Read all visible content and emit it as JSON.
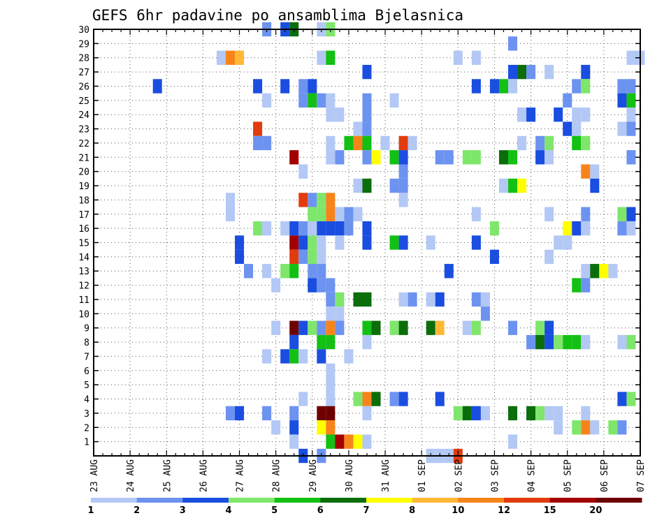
{
  "chart_data": {
    "type": "heatmap",
    "title": "GEFS 6hr padavine po ansamblima Bjelasnica",
    "xlabel": "",
    "ylabel": "",
    "x_tick_labels": [
      "23 AUG",
      "24 AUG",
      "25 AUG",
      "26 AUG",
      "27 AUG",
      "28 AUG",
      "29 AUG",
      "30 AUG",
      "31 AUG",
      "01 SEP",
      "02 SEP",
      "03 SEP",
      "04 SEP",
      "05 SEP",
      "06 SEP",
      "07 SEP"
    ],
    "y_tick_labels": [
      "1",
      "2",
      "3",
      "4",
      "5",
      "6",
      "7",
      "8",
      "9",
      "10",
      "11",
      "12",
      "13",
      "14",
      "15",
      "16",
      "17",
      "18",
      "19",
      "20",
      "21",
      "22",
      "23",
      "24",
      "25",
      "26",
      "27",
      "28",
      "29",
      "30"
    ],
    "x_range_steps": [
      0,
      60
    ],
    "steps_per_day": 4,
    "y_range_members": [
      0,
      30
    ],
    "legend_position": "bottom",
    "colorbar": {
      "labels": [
        "1",
        "2",
        "3",
        "4",
        "5",
        "6",
        "7",
        "8",
        "10",
        "12",
        "15",
        "20"
      ],
      "colors": [
        "#b3c8f5",
        "#6d93f0",
        "#1a4ee0",
        "#7fe66c",
        "#13c013",
        "#0b6e0b",
        "#ffff00",
        "#ffb836",
        "#f7841a",
        "#e23b0d",
        "#a20000",
        "#6e0000"
      ]
    },
    "cells": [
      [
        19,
        30,
        1
      ],
      [
        21,
        30,
        2
      ],
      [
        22,
        30,
        5
      ],
      [
        25,
        30,
        0
      ],
      [
        26,
        30,
        3
      ],
      [
        46,
        29,
        1
      ],
      [
        14,
        28,
        0
      ],
      [
        15,
        28,
        8
      ],
      [
        16,
        28,
        7
      ],
      [
        25,
        28,
        0
      ],
      [
        26,
        28,
        4
      ],
      [
        40,
        28,
        0
      ],
      [
        42,
        28,
        0
      ],
      [
        59,
        28,
        0
      ],
      [
        60,
        28,
        0
      ],
      [
        30,
        27,
        2
      ],
      [
        46,
        27,
        2
      ],
      [
        47,
        27,
        5
      ],
      [
        48,
        27,
        1
      ],
      [
        50,
        27,
        0
      ],
      [
        54,
        27,
        2
      ],
      [
        7,
        26,
        2
      ],
      [
        18,
        26,
        2
      ],
      [
        21,
        26,
        2
      ],
      [
        23,
        26,
        1
      ],
      [
        24,
        26,
        2
      ],
      [
        42,
        26,
        2
      ],
      [
        44,
        26,
        2
      ],
      [
        45,
        26,
        4
      ],
      [
        46,
        26,
        0
      ],
      [
        53,
        26,
        1
      ],
      [
        54,
        26,
        3
      ],
      [
        58,
        26,
        1
      ],
      [
        59,
        26,
        1
      ],
      [
        19,
        25,
        0
      ],
      [
        23,
        25,
        1
      ],
      [
        24,
        25,
        4
      ],
      [
        25,
        25,
        1
      ],
      [
        26,
        25,
        0
      ],
      [
        30,
        25,
        1
      ],
      [
        33,
        25,
        0
      ],
      [
        52,
        25,
        1
      ],
      [
        58,
        25,
        2
      ],
      [
        59,
        25,
        4
      ],
      [
        26,
        24,
        0
      ],
      [
        27,
        24,
        0
      ],
      [
        30,
        24,
        1
      ],
      [
        47,
        24,
        0
      ],
      [
        48,
        24,
        2
      ],
      [
        51,
        24,
        2
      ],
      [
        53,
        24,
        0
      ],
      [
        54,
        24,
        0
      ],
      [
        59,
        24,
        0
      ],
      [
        18,
        23,
        9
      ],
      [
        29,
        23,
        0
      ],
      [
        30,
        23,
        1
      ],
      [
        52,
        23,
        2
      ],
      [
        53,
        23,
        0
      ],
      [
        58,
        23,
        0
      ],
      [
        59,
        23,
        1
      ],
      [
        18,
        22,
        1
      ],
      [
        19,
        22,
        1
      ],
      [
        26,
        22,
        0
      ],
      [
        28,
        22,
        4
      ],
      [
        29,
        22,
        8
      ],
      [
        30,
        22,
        4
      ],
      [
        32,
        22,
        0
      ],
      [
        34,
        22,
        9
      ],
      [
        35,
        22,
        0
      ],
      [
        47,
        22,
        0
      ],
      [
        49,
        22,
        1
      ],
      [
        50,
        22,
        3
      ],
      [
        53,
        22,
        4
      ],
      [
        54,
        22,
        3
      ],
      [
        22,
        21,
        10
      ],
      [
        26,
        21,
        0
      ],
      [
        27,
        21,
        1
      ],
      [
        30,
        21,
        1
      ],
      [
        31,
        21,
        6
      ],
      [
        33,
        21,
        4
      ],
      [
        34,
        21,
        2
      ],
      [
        38,
        21,
        1
      ],
      [
        39,
        21,
        1
      ],
      [
        41,
        21,
        3
      ],
      [
        42,
        21,
        3
      ],
      [
        45,
        21,
        5
      ],
      [
        46,
        21,
        4
      ],
      [
        49,
        21,
        2
      ],
      [
        50,
        21,
        0
      ],
      [
        59,
        21,
        1
      ],
      [
        23,
        20,
        0
      ],
      [
        34,
        20,
        1
      ],
      [
        54,
        20,
        8
      ],
      [
        55,
        20,
        0
      ],
      [
        34,
        19,
        1
      ],
      [
        55,
        19,
        2
      ],
      [
        29,
        19,
        0
      ],
      [
        30,
        19,
        5
      ],
      [
        33,
        19,
        1
      ],
      [
        45,
        19,
        0
      ],
      [
        46,
        19,
        4
      ],
      [
        47,
        19,
        6
      ],
      [
        15,
        18,
        0
      ],
      [
        23,
        18,
        9
      ],
      [
        24,
        18,
        1
      ],
      [
        25,
        18,
        3
      ],
      [
        26,
        18,
        8
      ],
      [
        34,
        18,
        0
      ],
      [
        15,
        17,
        0
      ],
      [
        24,
        17,
        3
      ],
      [
        25,
        17,
        3
      ],
      [
        26,
        17,
        8
      ],
      [
        27,
        17,
        0
      ],
      [
        28,
        17,
        1
      ],
      [
        29,
        17,
        0
      ],
      [
        42,
        17,
        0
      ],
      [
        50,
        17,
        0
      ],
      [
        54,
        17,
        1
      ],
      [
        58,
        17,
        3
      ],
      [
        59,
        17,
        2
      ],
      [
        18,
        16,
        3
      ],
      [
        19,
        16,
        0
      ],
      [
        21,
        16,
        0
      ],
      [
        22,
        16,
        2
      ],
      [
        23,
        16,
        1
      ],
      [
        24,
        16,
        0
      ],
      [
        25,
        16,
        2
      ],
      [
        26,
        16,
        2
      ],
      [
        27,
        16,
        2
      ],
      [
        28,
        16,
        1
      ],
      [
        30,
        16,
        2
      ],
      [
        44,
        16,
        3
      ],
      [
        52,
        16,
        6
      ],
      [
        53,
        16,
        2
      ],
      [
        54,
        16,
        0
      ],
      [
        58,
        16,
        1
      ],
      [
        59,
        16,
        0
      ],
      [
        16,
        15,
        2
      ],
      [
        22,
        15,
        10
      ],
      [
        23,
        15,
        2
      ],
      [
        24,
        15,
        3
      ],
      [
        25,
        15,
        0
      ],
      [
        27,
        15,
        0
      ],
      [
        30,
        15,
        2
      ],
      [
        33,
        15,
        4
      ],
      [
        34,
        15,
        2
      ],
      [
        37,
        15,
        0
      ],
      [
        42,
        15,
        2
      ],
      [
        51,
        15,
        0
      ],
      [
        52,
        15,
        0
      ],
      [
        16,
        14,
        2
      ],
      [
        22,
        14,
        9
      ],
      [
        23,
        14,
        1
      ],
      [
        24,
        14,
        3
      ],
      [
        25,
        14,
        0
      ],
      [
        44,
        14,
        2
      ],
      [
        50,
        14,
        0
      ],
      [
        17,
        13,
        1
      ],
      [
        19,
        13,
        0
      ],
      [
        21,
        13,
        3
      ],
      [
        22,
        13,
        4
      ],
      [
        24,
        13,
        1
      ],
      [
        25,
        13,
        1
      ],
      [
        39,
        13,
        2
      ],
      [
        54,
        13,
        0
      ],
      [
        55,
        13,
        5
      ],
      [
        56,
        13,
        6
      ],
      [
        57,
        13,
        0
      ],
      [
        20,
        12,
        0
      ],
      [
        24,
        12,
        2
      ],
      [
        25,
        12,
        1
      ],
      [
        26,
        12,
        1
      ],
      [
        53,
        12,
        4
      ],
      [
        54,
        12,
        1
      ],
      [
        26,
        11,
        1
      ],
      [
        27,
        11,
        3
      ],
      [
        29,
        11,
        5
      ],
      [
        30,
        11,
        5
      ],
      [
        34,
        11,
        0
      ],
      [
        35,
        11,
        1
      ],
      [
        37,
        11,
        0
      ],
      [
        38,
        11,
        2
      ],
      [
        42,
        11,
        1
      ],
      [
        43,
        11,
        0
      ],
      [
        26,
        10,
        0
      ],
      [
        27,
        10,
        0
      ],
      [
        43,
        10,
        1
      ],
      [
        20,
        9,
        0
      ],
      [
        22,
        9,
        11
      ],
      [
        23,
        9,
        2
      ],
      [
        24,
        9,
        3
      ],
      [
        25,
        9,
        1
      ],
      [
        26,
        9,
        8
      ],
      [
        27,
        9,
        1
      ],
      [
        30,
        9,
        4
      ],
      [
        31,
        9,
        5
      ],
      [
        33,
        9,
        3
      ],
      [
        34,
        9,
        5
      ],
      [
        37,
        9,
        5
      ],
      [
        38,
        9,
        7
      ],
      [
        41,
        9,
        0
      ],
      [
        42,
        9,
        3
      ],
      [
        46,
        9,
        1
      ],
      [
        49,
        9,
        3
      ],
      [
        50,
        9,
        2
      ],
      [
        22,
        8,
        2
      ],
      [
        25,
        8,
        4
      ],
      [
        26,
        8,
        4
      ],
      [
        30,
        8,
        0
      ],
      [
        48,
        8,
        1
      ],
      [
        49,
        8,
        5
      ],
      [
        50,
        8,
        2
      ],
      [
        51,
        8,
        3
      ],
      [
        52,
        8,
        4
      ],
      [
        53,
        8,
        4
      ],
      [
        54,
        8,
        0
      ],
      [
        58,
        8,
        0
      ],
      [
        59,
        8,
        3
      ],
      [
        19,
        7,
        0
      ],
      [
        21,
        7,
        2
      ],
      [
        22,
        7,
        4
      ],
      [
        23,
        7,
        0
      ],
      [
        25,
        7,
        2
      ],
      [
        28,
        7,
        0
      ],
      [
        26,
        6,
        0
      ],
      [
        26,
        5,
        0
      ],
      [
        23,
        4,
        0
      ],
      [
        26,
        4,
        0
      ],
      [
        29,
        4,
        3
      ],
      [
        30,
        4,
        8
      ],
      [
        31,
        4,
        5
      ],
      [
        33,
        4,
        1
      ],
      [
        34,
        4,
        2
      ],
      [
        38,
        4,
        2
      ],
      [
        58,
        4,
        2
      ],
      [
        59,
        4,
        3
      ],
      [
        15,
        3,
        1
      ],
      [
        16,
        3,
        2
      ],
      [
        19,
        3,
        1
      ],
      [
        22,
        3,
        1
      ],
      [
        25,
        3,
        11
      ],
      [
        26,
        3,
        11
      ],
      [
        30,
        3,
        0
      ],
      [
        40,
        3,
        3
      ],
      [
        41,
        3,
        5
      ],
      [
        42,
        3,
        2
      ],
      [
        43,
        3,
        0
      ],
      [
        46,
        3,
        5
      ],
      [
        48,
        3,
        5
      ],
      [
        49,
        3,
        3
      ],
      [
        50,
        3,
        0
      ],
      [
        51,
        3,
        0
      ],
      [
        54,
        3,
        0
      ],
      [
        20,
        2,
        0
      ],
      [
        22,
        2,
        2
      ],
      [
        25,
        2,
        6
      ],
      [
        26,
        2,
        8
      ],
      [
        51,
        2,
        0
      ],
      [
        53,
        2,
        3
      ],
      [
        54,
        2,
        8
      ],
      [
        55,
        2,
        0
      ],
      [
        57,
        2,
        3
      ],
      [
        58,
        2,
        1
      ],
      [
        22,
        1,
        0
      ],
      [
        26,
        1,
        4
      ],
      [
        27,
        1,
        10
      ],
      [
        28,
        1,
        8
      ],
      [
        29,
        1,
        6
      ],
      [
        30,
        1,
        0
      ],
      [
        46,
        1,
        0
      ],
      [
        23,
        0,
        2
      ],
      [
        25,
        0,
        1
      ],
      [
        37,
        0,
        0
      ],
      [
        38,
        0,
        0
      ],
      [
        39,
        0,
        0
      ],
      [
        40,
        0,
        9
      ]
    ]
  }
}
